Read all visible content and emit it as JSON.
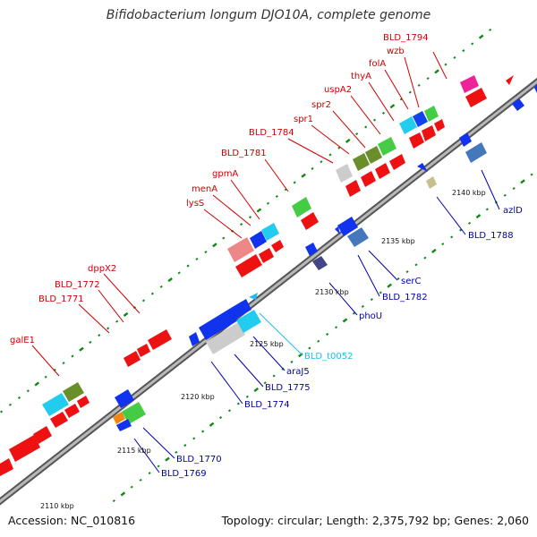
{
  "title": "Bifidobacterium longum DJO10A, complete genome",
  "accession": "Accession: NC_010816",
  "summary": "Topology: circular; Length: 2,375,792 bp; Genes: 2,060",
  "colors": {
    "forward_label": "#cc0000",
    "reverse_label": "#0000aa",
    "trna_label": "#22bbee",
    "tick": "#118811",
    "backbone": "#888888"
  },
  "kbp_labels": [
    "2110 kbp",
    "2115 kbp",
    "2120 kbp",
    "2125 kbp",
    "2130 kbp",
    "2135 kbp",
    "2140 kbp"
  ],
  "forward_gene_labels": [
    "BLD_1794",
    "wzb",
    "folA",
    "thyA",
    "uspA2",
    "spr2",
    "spr1",
    "BLD_1784",
    "BLD_1781",
    "gpmA",
    "menA",
    "lysS",
    "dppX2",
    "BLD_1772",
    "BLD_1771",
    "galE1"
  ],
  "reverse_gene_labels": [
    "azlD",
    "BLD_1788",
    "serC",
    "BLD_1782",
    "phoU",
    "BLD_t0052",
    "araJ5",
    "BLD_1775",
    "BLD_1774",
    "BLD_1770",
    "BLD_1769"
  ]
}
